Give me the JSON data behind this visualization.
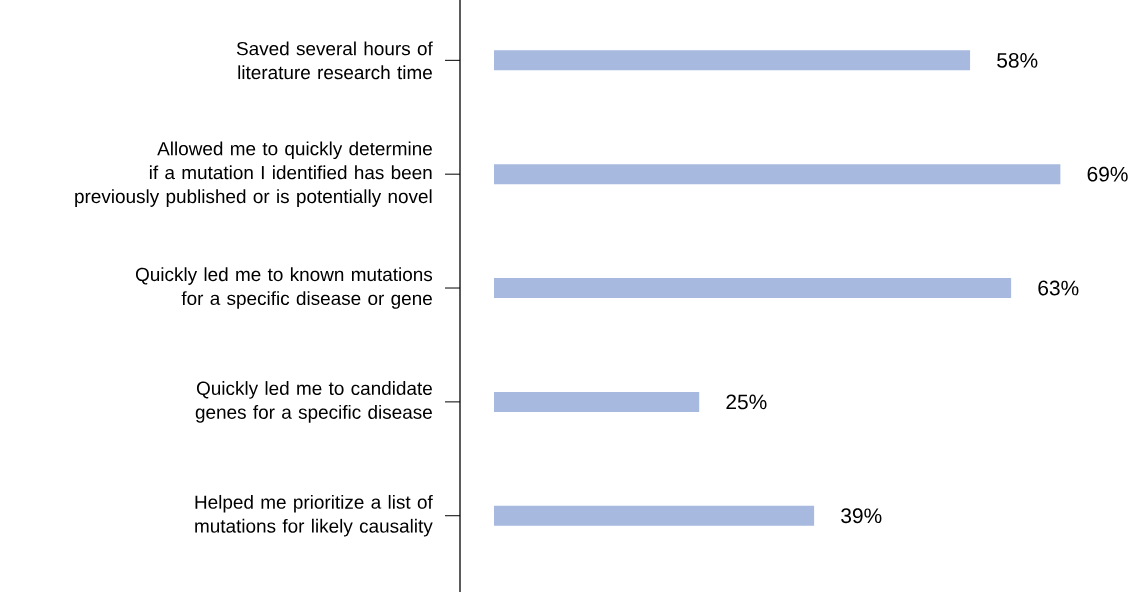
{
  "chart_data": {
    "type": "bar",
    "orientation": "horizontal",
    "categories": [
      "Saved several hours of literature research time",
      "Allowed me to quickly determine if a mutation I identified has been previously published or is potentially novel",
      "Quickly led me to known mutations for a specific disease or gene",
      "Quickly led me to candidate genes for a specific disease",
      "Helped me prioritize a list of mutations for likely causality"
    ],
    "values": [
      58,
      69,
      63,
      25,
      39
    ],
    "value_labels": [
      "58%",
      "69%",
      "63%",
      "25%",
      "39%"
    ],
    "color": "#a7b9de"
  }
}
